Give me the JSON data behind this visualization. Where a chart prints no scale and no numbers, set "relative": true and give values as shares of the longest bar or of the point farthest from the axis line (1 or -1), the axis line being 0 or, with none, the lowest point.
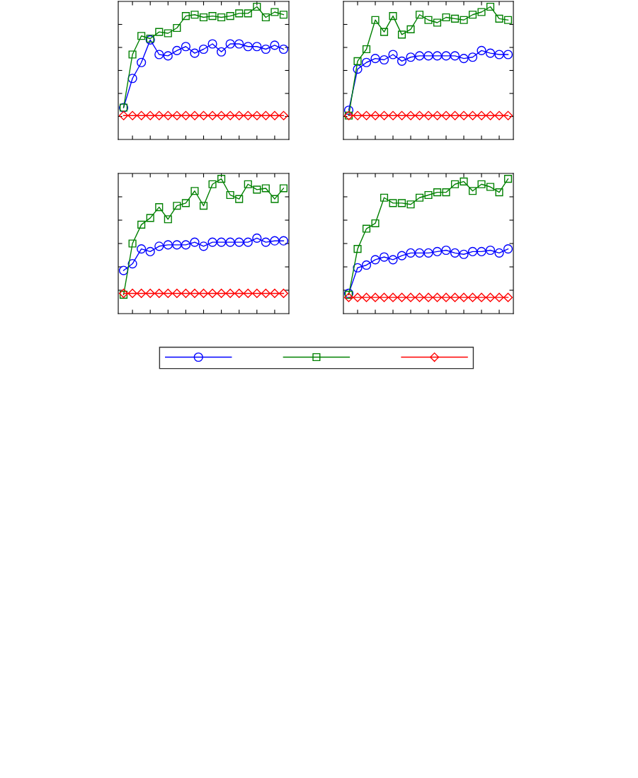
{
  "chart_data": [
    {
      "type": "line",
      "relative": true,
      "grid": false,
      "categories": [
        null,
        null,
        null,
        null,
        null,
        null,
        null,
        null,
        null,
        null,
        null,
        null,
        null,
        null,
        null,
        null,
        null,
        null,
        null
      ],
      "series": [
        {
          "color": "#0000ff",
          "marker": "circle",
          "values": [
            0.24,
            0.46,
            0.58,
            0.75,
            0.64,
            0.63,
            0.67,
            0.7,
            0.65,
            0.68,
            0.72,
            0.66,
            0.72,
            0.72,
            0.7,
            0.7,
            0.68,
            0.71,
            0.68
          ]
        },
        {
          "color": "#008000",
          "marker": "square",
          "values": [
            0.24,
            0.64,
            0.78,
            0.76,
            0.81,
            0.8,
            0.84,
            0.93,
            0.94,
            0.92,
            0.93,
            0.92,
            0.93,
            0.95,
            0.95,
            1.0,
            0.92,
            0.96,
            0.94
          ]
        },
        {
          "color": "#ff0000",
          "marker": "diamond",
          "values": [
            0.18,
            0.18,
            0.18,
            0.18,
            0.18,
            0.18,
            0.18,
            0.18,
            0.18,
            0.18,
            0.18,
            0.18,
            0.18,
            0.18,
            0.18,
            0.18,
            0.18,
            0.18,
            0.18
          ]
        }
      ]
    },
    {
      "type": "line",
      "relative": true,
      "grid": false,
      "categories": [
        null,
        null,
        null,
        null,
        null,
        null,
        null,
        null,
        null,
        null,
        null,
        null,
        null,
        null,
        null,
        null,
        null,
        null,
        null
      ],
      "series": [
        {
          "color": "#0000ff",
          "marker": "circle",
          "values": [
            0.22,
            0.53,
            0.58,
            0.61,
            0.6,
            0.64,
            0.59,
            0.62,
            0.63,
            0.63,
            0.63,
            0.63,
            0.63,
            0.61,
            0.62,
            0.67,
            0.65,
            0.64,
            0.64
          ]
        },
        {
          "color": "#008000",
          "marker": "square",
          "values": [
            0.18,
            0.59,
            0.68,
            0.9,
            0.81,
            0.93,
            0.79,
            0.83,
            0.94,
            0.9,
            0.88,
            0.92,
            0.91,
            0.9,
            0.94,
            0.96,
            1.0,
            0.91,
            0.9
          ]
        },
        {
          "color": "#ff0000",
          "marker": "diamond",
          "values": [
            0.18,
            0.18,
            0.18,
            0.18,
            0.18,
            0.18,
            0.18,
            0.18,
            0.18,
            0.18,
            0.18,
            0.18,
            0.18,
            0.18,
            0.18,
            0.18,
            0.18,
            0.18,
            0.18
          ]
        }
      ]
    },
    {
      "type": "line",
      "relative": true,
      "grid": false,
      "categories": [
        null,
        null,
        null,
        null,
        null,
        null,
        null,
        null,
        null,
        null,
        null,
        null,
        null,
        null,
        null,
        null,
        null,
        null,
        null
      ],
      "series": [
        {
          "color": "#0000ff",
          "marker": "circle",
          "values": [
            0.32,
            0.37,
            0.48,
            0.46,
            0.5,
            0.51,
            0.51,
            0.51,
            0.53,
            0.5,
            0.53,
            0.53,
            0.53,
            0.53,
            0.53,
            0.56,
            0.53,
            0.54,
            0.54
          ]
        },
        {
          "color": "#008000",
          "marker": "square",
          "values": [
            0.14,
            0.52,
            0.66,
            0.71,
            0.79,
            0.7,
            0.8,
            0.82,
            0.91,
            0.8,
            0.96,
            1.0,
            0.88,
            0.85,
            0.96,
            0.92,
            0.93,
            0.85,
            0.93
          ]
        },
        {
          "color": "#ff0000",
          "marker": "diamond",
          "values": [
            0.15,
            0.15,
            0.15,
            0.15,
            0.15,
            0.15,
            0.15,
            0.15,
            0.15,
            0.15,
            0.15,
            0.15,
            0.15,
            0.15,
            0.15,
            0.15,
            0.15,
            0.15,
            0.15
          ]
        }
      ]
    },
    {
      "type": "line",
      "relative": true,
      "grid": false,
      "categories": [
        null,
        null,
        null,
        null,
        null,
        null,
        null,
        null,
        null,
        null,
        null,
        null,
        null,
        null,
        null,
        null,
        null,
        null,
        null
      ],
      "series": [
        {
          "color": "#0000ff",
          "marker": "circle",
          "values": [
            0.15,
            0.34,
            0.36,
            0.4,
            0.42,
            0.4,
            0.43,
            0.45,
            0.45,
            0.45,
            0.46,
            0.47,
            0.45,
            0.44,
            0.46,
            0.46,
            0.47,
            0.45,
            0.48
          ]
        },
        {
          "color": "#008000",
          "marker": "square",
          "values": [
            0.14,
            0.48,
            0.63,
            0.67,
            0.86,
            0.82,
            0.82,
            0.81,
            0.86,
            0.88,
            0.9,
            0.9,
            0.96,
            0.98,
            0.91,
            0.96,
            0.94,
            0.9,
            1.0
          ]
        },
        {
          "color": "#ff0000",
          "marker": "diamond",
          "values": [
            0.12,
            0.12,
            0.12,
            0.12,
            0.12,
            0.12,
            0.12,
            0.12,
            0.12,
            0.12,
            0.12,
            0.12,
            0.12,
            0.12,
            0.12,
            0.12,
            0.12,
            0.12,
            0.12
          ]
        }
      ]
    }
  ]
}
